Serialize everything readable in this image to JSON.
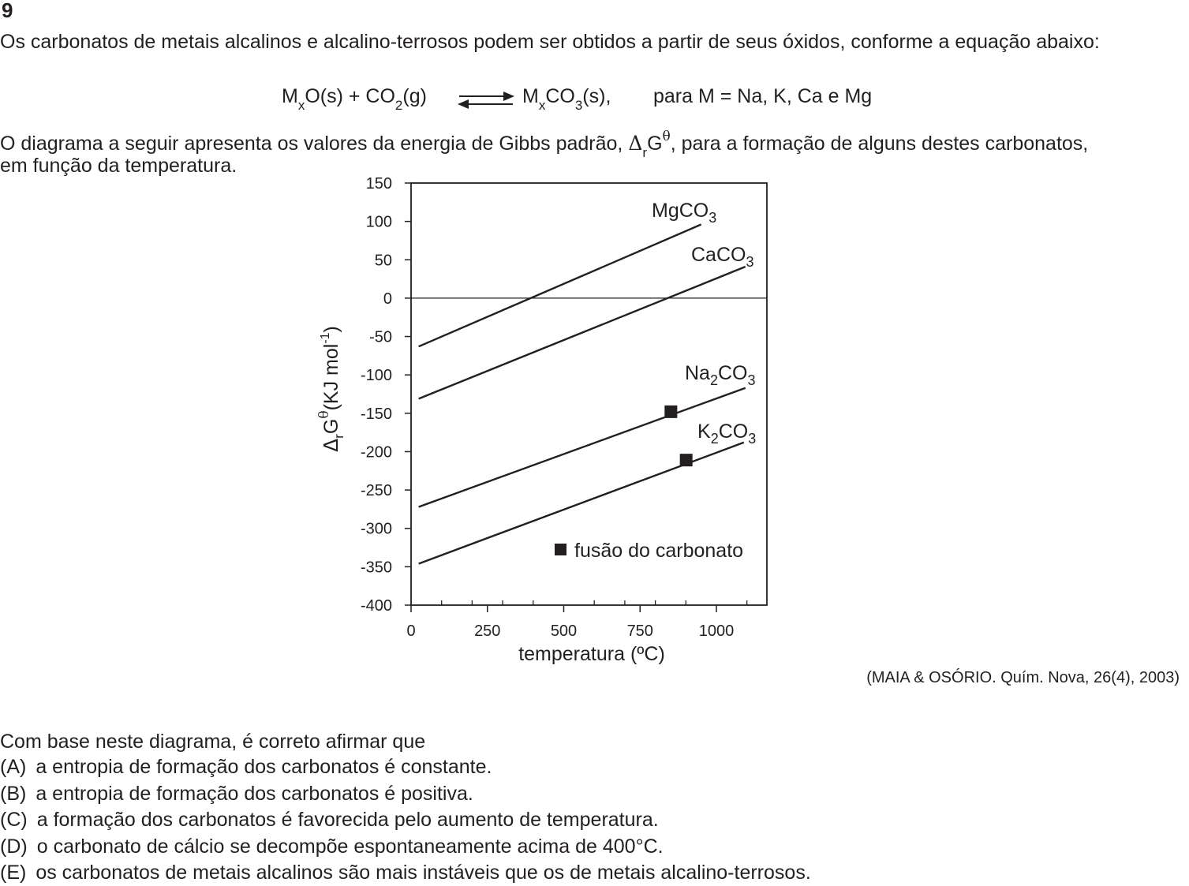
{
  "question": {
    "number": "9",
    "intro": "Os carbonatos de metais alcalinos e alcalino-terrosos podem ser obtidos a partir de seus óxidos, conforme a equação abaixo:",
    "equation": {
      "reactant_M": "M",
      "reactant_x": "x",
      "reactant_rest": "O(s) + CO",
      "co2_sub": "2",
      "co2_rest": "(g)",
      "product_M": "M",
      "product_x": "x",
      "product_rest": "CO",
      "product_sub": "3",
      "product_end": "(s),",
      "condition": "para M = Na, K, Ca e Mg"
    },
    "diagram_text_1": "O diagrama a seguir apresenta os valores da energia de Gibbs padrão, ",
    "delta": "Δ",
    "delta_sub": "r",
    "gibbs": "G",
    "gibbs_sup": "θ",
    "diagram_text_2": ", para a formação de alguns destes carbonatos,",
    "diagram_text_3": "em função da temperatura.",
    "source": "(MAIA & OSÓRIO. Quím. Nova, 26(4), 2003)",
    "stem": "Com base neste diagrama, é correto afirmar que",
    "options": [
      {
        "letter": "(A)",
        "text": "a entropia de formação dos carbonatos é constante."
      },
      {
        "letter": "(B)",
        "text": "a entropia de formação dos carbonatos é positiva."
      },
      {
        "letter": "(C)",
        "text": "a formação dos carbonatos é favorecida pelo aumento de temperatura."
      },
      {
        "letter": "(D)",
        "text": "o carbonato de cálcio se decompõe espontaneamente acima de 400°C."
      },
      {
        "letter": "(E)",
        "text": "os carbonatos de metais alcalinos são mais instáveis que os de metais alcalino-terrosos."
      }
    ]
  },
  "chart_data": {
    "type": "line",
    "xlabel": "temperatura (ºC)",
    "ylabel_parts": {
      "delta": "Δ",
      "sub": "r",
      "g": "G",
      "sup": "θ",
      "unit": "(KJ mol",
      "unit_sup": "-1",
      "unit_end": ")"
    },
    "xlim": [
      0,
      1200
    ],
    "ylim": [
      -400,
      150
    ],
    "x_ticks": [
      0,
      250,
      500,
      750,
      1000
    ],
    "x_minor_ticks": [
      100,
      200,
      300,
      400,
      600,
      700,
      800,
      900,
      1100
    ],
    "y_ticks": [
      150,
      100,
      50,
      0,
      -50,
      -100,
      -150,
      -200,
      -250,
      -300,
      -350,
      -400
    ],
    "zero_line": 0,
    "series": [
      {
        "name": "MgCO",
        "sub": "3",
        "prefix_sub": "",
        "x": [
          25,
          950
        ],
        "y": [
          -63,
          96
        ]
      },
      {
        "name": "CaCO",
        "sub": "3",
        "prefix_sub": "",
        "x": [
          25,
          1095
        ],
        "y": [
          -131,
          41
        ]
      },
      {
        "name": "Na",
        "prefix_sub": "2",
        "name2": "CO",
        "sub": "3",
        "x": [
          25,
          1095
        ],
        "y": [
          -272,
          -117
        ]
      },
      {
        "name": "K",
        "prefix_sub": "2",
        "name2": "CO",
        "sub": "3",
        "x": [
          25,
          1090
        ],
        "y": [
          -346,
          -188
        ]
      }
    ],
    "markers": [
      {
        "series": "Na2CO3",
        "x": 851,
        "y": -148
      },
      {
        "series": "K2CO3",
        "x": 901,
        "y": -211
      }
    ],
    "legend": {
      "label": "fusão do carbonato",
      "position": "bottom-right"
    }
  }
}
